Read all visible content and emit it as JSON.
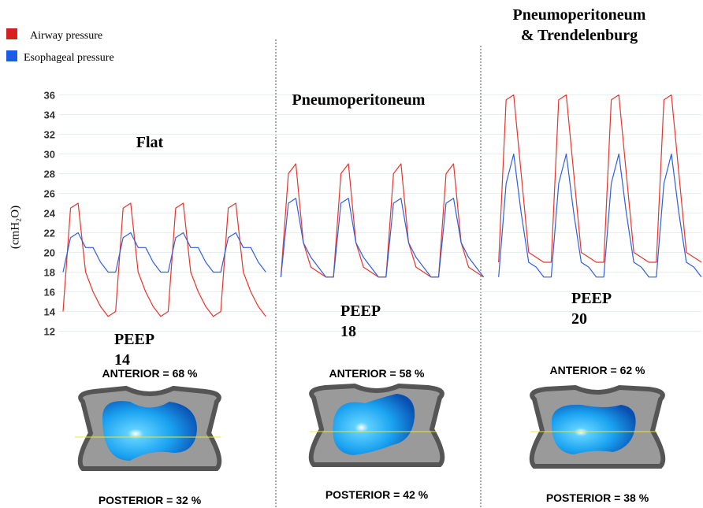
{
  "chart_data": {
    "type": "line",
    "y_label": "(cmH₂O)",
    "ylim": [
      11,
      37
    ],
    "yticks": [
      12,
      14,
      16,
      18,
      20,
      22,
      24,
      26,
      28,
      30,
      32,
      34,
      36
    ],
    "grid": true,
    "categories": [
      null,
      null,
      null,
      null,
      null,
      null,
      null,
      null,
      null,
      null,
      null,
      null,
      null,
      null,
      null,
      null,
      null,
      null,
      null,
      null,
      null,
      null,
      null,
      null,
      null,
      null,
      null,
      null,
      null,
      null,
      null,
      null,
      null,
      null,
      null,
      null,
      null,
      null,
      null,
      null,
      null,
      null,
      null,
      null,
      null,
      null,
      null,
      null,
      null,
      null,
      null,
      null,
      null,
      null,
      null,
      null,
      null,
      null,
      null,
      null,
      null,
      null,
      null,
      null,
      null,
      null,
      null,
      null,
      null,
      null,
      null,
      null,
      null,
      null,
      null,
      null,
      null,
      null,
      null,
      null,
      null,
      null,
      null,
      null,
      null,
      null
    ],
    "series": [
      {
        "name": "Airway pressure",
        "color": "#e8342c",
        "values": [
          14,
          24.5,
          25,
          18,
          16,
          14.5,
          13.5,
          14,
          24.5,
          25,
          18,
          16,
          14.5,
          13.5,
          14,
          24.5,
          25,
          18,
          16,
          14.5,
          13.5,
          14,
          24.5,
          25,
          18,
          16,
          14.5,
          13.5,
          null,
          17.5,
          28,
          29,
          21,
          18.5,
          18,
          17.5,
          17.5,
          28,
          29,
          21,
          18.5,
          18,
          17.5,
          17.5,
          28,
          29,
          21,
          18.5,
          18,
          17.5,
          17.5,
          28,
          29,
          21,
          18.5,
          18,
          17.5,
          null,
          19,
          35.5,
          36,
          28,
          20,
          19.5,
          19,
          19,
          35.5,
          36,
          28,
          20,
          19.5,
          19,
          19,
          35.5,
          36,
          28,
          20,
          19.5,
          19,
          19,
          35.5,
          36,
          28,
          20,
          19.5,
          19
        ]
      },
      {
        "name": "Esophageal pressure",
        "color": "#2f5fe0",
        "values": [
          18,
          21.5,
          22,
          20.5,
          20.5,
          19,
          18,
          18,
          21.5,
          22,
          20.5,
          20.5,
          19,
          18,
          18,
          21.5,
          22,
          20.5,
          20.5,
          19,
          18,
          18,
          21.5,
          22,
          20.5,
          20.5,
          19,
          18,
          null,
          17.5,
          25,
          25.5,
          21,
          19.5,
          18.5,
          17.5,
          17.5,
          25,
          25.5,
          21,
          19.5,
          18.5,
          17.5,
          17.5,
          25,
          25.5,
          21,
          19.5,
          18.5,
          17.5,
          17.5,
          25,
          25.5,
          21,
          19.5,
          18.5,
          17.5,
          null,
          17.5,
          27,
          30,
          24,
          19,
          18.5,
          17.5,
          17.5,
          27,
          30,
          24,
          19,
          18.5,
          17.5,
          17.5,
          27,
          30,
          24,
          19,
          18.5,
          17.5,
          17.5,
          27,
          30,
          24,
          19,
          18.5,
          17.5
        ]
      }
    ],
    "panels": [
      {
        "title": "Flat",
        "peep": "PEEP\n14",
        "anterior": "ANTERIOR = 68 %",
        "posterior": "POSTERIOR = 32 %"
      },
      {
        "title": "Pneumoperitoneum",
        "peep": "PEEP\n18",
        "anterior": "ANTERIOR = 58 %",
        "posterior": "POSTERIOR = 42 %"
      },
      {
        "title": "Pneumoperitoneum\n& Trendelenburg",
        "peep": "PEEP\n20",
        "anterior": "ANTERIOR = 62 %",
        "posterior": "POSTERIOR = 38 %"
      }
    ]
  }
}
